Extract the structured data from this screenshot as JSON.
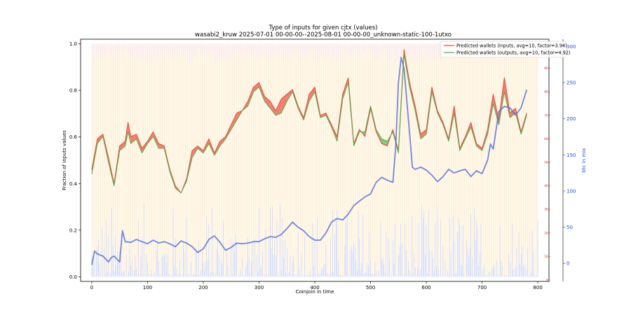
{
  "chart_data": {
    "type": "line",
    "title": "Type of inputs for given cjtx (values)",
    "subtitle": "wasabi2_kruw 2025-07-01 00-00-00--2025-08-01 00-00-00_unknown-static-100-1utxo",
    "xlabel": "Coinjoin in time",
    "ylabel": "Fraction of inputs values",
    "ylabel_right": "btc in mix",
    "xlim": [
      -20,
      820
    ],
    "ylim": [
      -0.02,
      1.02
    ],
    "ylim_right": [
      -25,
      310
    ],
    "ylim_red": [
      0,
      100
    ],
    "xticks": [
      0,
      100,
      200,
      300,
      400,
      500,
      600,
      700,
      800
    ],
    "yticks": [
      0.0,
      0.2,
      0.4,
      0.6,
      0.8,
      1.0
    ],
    "yticks_right": [
      0,
      50,
      100,
      150,
      200,
      250,
      300
    ],
    "yticks_red": [
      0,
      10,
      20,
      30,
      40,
      50,
      60,
      70,
      80,
      90
    ],
    "grid": false,
    "legend_position": "top-right",
    "series": [
      {
        "name": "Predicted wallets (inputs, avg=10, factor=3.94)",
        "color": "#e8483a",
        "axis": "red",
        "x": [
          0,
          10,
          20,
          30,
          40,
          50,
          60,
          65,
          70,
          80,
          90,
          100,
          110,
          120,
          130,
          140,
          150,
          160,
          170,
          180,
          190,
          200,
          210,
          220,
          230,
          240,
          250,
          260,
          270,
          280,
          290,
          300,
          310,
          320,
          330,
          340,
          350,
          360,
          370,
          380,
          390,
          400,
          410,
          420,
          430,
          440,
          450,
          460,
          470,
          480,
          490,
          500,
          510,
          520,
          530,
          540,
          550,
          560,
          570,
          580,
          590,
          600,
          610,
          620,
          630,
          640,
          650,
          660,
          670,
          680,
          690,
          700,
          710,
          720,
          730,
          740,
          750,
          760,
          770,
          780
        ],
        "values": [
          47,
          60,
          62,
          52,
          41,
          57,
          59,
          67,
          61,
          62,
          56,
          59,
          63,
          58,
          57,
          47,
          40,
          37,
          43,
          55,
          57,
          55,
          60,
          54,
          59,
          61,
          66,
          71,
          72,
          76,
          82,
          84,
          78,
          76,
          72,
          77,
          79,
          81,
          74,
          69,
          79,
          82,
          70,
          71,
          66,
          61,
          79,
          86,
          58,
          64,
          61,
          73,
          63,
          58,
          57,
          64,
          55,
          98,
          84,
          74,
          62,
          64,
          82,
          72,
          67,
          60,
          74,
          56,
          61,
          67,
          58,
          56,
          64,
          79,
          68,
          86,
          71,
          73,
          63,
          71
        ]
      },
      {
        "name": "Predicted wallets (outputs, avg=10, factor=4.92)",
        "color": "#4caf50",
        "axis": "red",
        "x": [
          0,
          10,
          20,
          30,
          40,
          50,
          60,
          65,
          70,
          80,
          90,
          100,
          110,
          120,
          130,
          140,
          150,
          160,
          170,
          180,
          190,
          200,
          210,
          220,
          230,
          240,
          250,
          260,
          270,
          280,
          290,
          300,
          310,
          320,
          330,
          340,
          350,
          360,
          370,
          380,
          390,
          400,
          410,
          420,
          430,
          440,
          450,
          460,
          470,
          480,
          490,
          500,
          510,
          520,
          530,
          540,
          550,
          560,
          570,
          580,
          590,
          600,
          610,
          620,
          630,
          640,
          650,
          660,
          670,
          680,
          690,
          700,
          710,
          720,
          730,
          740,
          750,
          760,
          770,
          780
        ],
        "values": [
          45,
          58,
          61,
          50,
          40,
          55,
          57,
          63,
          58,
          60,
          54,
          58,
          61,
          56,
          56,
          46,
          39,
          37,
          42,
          52,
          56,
          54,
          58,
          53,
          57,
          60,
          64,
          68,
          72,
          74,
          80,
          82,
          76,
          73,
          70,
          71,
          76,
          80,
          73,
          68,
          76,
          80,
          69,
          70,
          65,
          59,
          77,
          84,
          57,
          63,
          63,
          74,
          64,
          60,
          59,
          63,
          54,
          96,
          82,
          72,
          60,
          62,
          80,
          71,
          66,
          59,
          71,
          55,
          60,
          65,
          57,
          55,
          62,
          75,
          66,
          80,
          69,
          71,
          62,
          70
        ]
      },
      {
        "name": "btc in mix",
        "color": "#5b73d6",
        "axis": "blue",
        "x": [
          0,
          5,
          10,
          20,
          30,
          35,
          40,
          50,
          55,
          60,
          70,
          80,
          90,
          100,
          110,
          120,
          130,
          140,
          150,
          160,
          170,
          180,
          190,
          200,
          210,
          220,
          230,
          240,
          250,
          260,
          270,
          280,
          290,
          300,
          310,
          320,
          330,
          340,
          350,
          360,
          370,
          380,
          390,
          400,
          410,
          420,
          430,
          440,
          450,
          460,
          470,
          480,
          490,
          500,
          510,
          520,
          530,
          540,
          545,
          550,
          555,
          560,
          570,
          575,
          580,
          590,
          600,
          610,
          620,
          630,
          640,
          650,
          660,
          670,
          680,
          690,
          700,
          710,
          715,
          720,
          730,
          740,
          750,
          760,
          770,
          780
        ],
        "values": [
          -2,
          17,
          13,
          10,
          2,
          8,
          10,
          2,
          45,
          30,
          29,
          33,
          30,
          27,
          32,
          28,
          30,
          27,
          23,
          31,
          28,
          23,
          15,
          20,
          33,
          38,
          29,
          18,
          22,
          28,
          27,
          28,
          30,
          30,
          34,
          37,
          36,
          40,
          48,
          57,
          50,
          45,
          37,
          32,
          32,
          42,
          57,
          62,
          60,
          68,
          80,
          86,
          92,
          96,
          112,
          119,
          115,
          112,
          160,
          250,
          285,
          270,
          180,
          133,
          130,
          133,
          129,
          122,
          113,
          120,
          130,
          125,
          128,
          130,
          120,
          128,
          124,
          143,
          165,
          158,
          210,
          217,
          215,
          205,
          215,
          240
        ]
      }
    ],
    "background_bars": [
      {
        "name": "fraction values (bottom, light blue)",
        "color": "#8b9dea"
      },
      {
        "name": "fraction values (middle, light orange)",
        "color": "#fbd998"
      },
      {
        "name": "fraction values (top, light pink)",
        "color": "#f6c4c4"
      }
    ]
  }
}
